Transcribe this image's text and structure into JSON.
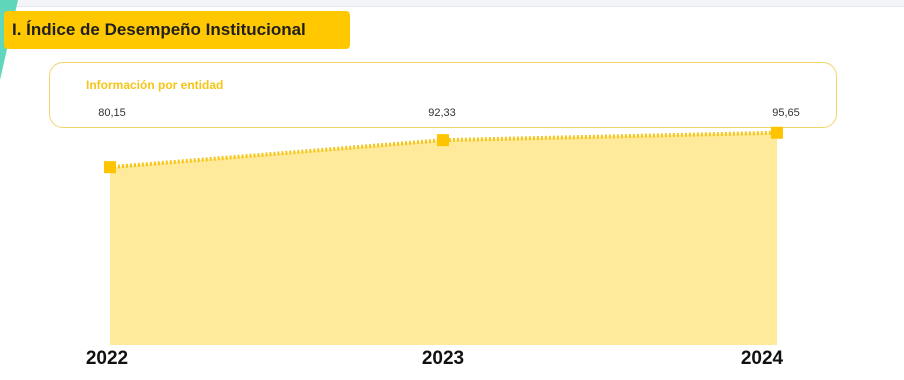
{
  "header": {
    "title": "I. Índice de Desempeño Institucional"
  },
  "card": {
    "label": "Información por entidad"
  },
  "colors": {
    "accent": "#ffc800",
    "area_fill": "#ffe99a",
    "line": "#f5c518",
    "marker": "#ffc400",
    "card_border": "#f2d56a"
  },
  "chart_data": {
    "type": "area",
    "categories": [
      "2022",
      "2023",
      "2024"
    ],
    "values": [
      80.15,
      92.33,
      95.65
    ],
    "data_labels": [
      "80,15",
      "92,33",
      "95,65"
    ],
    "title": "",
    "xlabel": "",
    "ylabel": "",
    "ylim": [
      0,
      100
    ],
    "grid": false,
    "legend": "none"
  }
}
